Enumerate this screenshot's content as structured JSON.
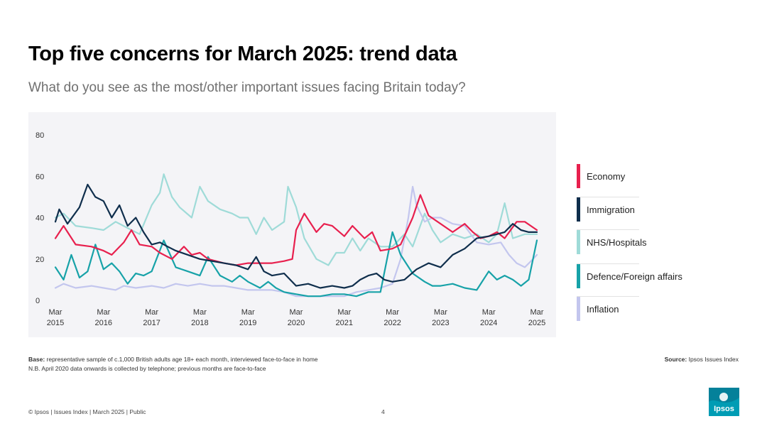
{
  "header": {
    "title": "Top five concerns for March 2025: trend data",
    "subtitle": "What do you see as the most/other important issues facing Britain today?"
  },
  "notes": {
    "base_label": "Base:",
    "base_text": " representative sample of c.1,000 British adults age 18+ each month, interviewed face-to-face in home",
    "nb_text": "N.B. April 2020 data onwards is collected by telephone; previous months are face-to-face",
    "source_label": "Source:",
    "source_text": " Ipsos Issues Index"
  },
  "footer": {
    "text": "© Ipsos | Issues Index | March 2025 | Public",
    "page_number": "4",
    "logo_text": "Ipsos"
  },
  "colors": {
    "economy": "#e8204e",
    "immigration": "#0f2e4c",
    "nhs": "#9fdbd8",
    "defence": "#17a2a8",
    "inflation": "#c3c6ee",
    "logo_bg": "#009cb4"
  },
  "chart_data": {
    "type": "line",
    "title": "Top five concerns for March 2025: trend data",
    "xlabel": "",
    "ylabel": "",
    "ylim": [
      0,
      80
    ],
    "yticks": [
      0,
      20,
      40,
      60,
      80
    ],
    "x_ticks": [
      {
        "month": "Mar",
        "year": "2015"
      },
      {
        "month": "Mar",
        "year": "2016"
      },
      {
        "month": "Mar",
        "year": "2017"
      },
      {
        "month": "Mar",
        "year": "2018"
      },
      {
        "month": "Mar",
        "year": "2019"
      },
      {
        "month": "Mar",
        "year": "2020"
      },
      {
        "month": "Mar",
        "year": "2021"
      },
      {
        "month": "Mar",
        "year": "2022"
      },
      {
        "month": "Mar",
        "year": "2023"
      },
      {
        "month": "Mar",
        "year": "2024"
      },
      {
        "month": "Mar",
        "year": "2025"
      }
    ],
    "x_start": 2015.0,
    "x_end": 2025.0,
    "legend_position": "right",
    "grid": false,
    "series": [
      {
        "name": "Economy",
        "key": "economy",
        "points": [
          [
            2015,
            30
          ],
          [
            2015.17,
            36
          ],
          [
            2015.42,
            27
          ],
          [
            2015.75,
            26
          ],
          [
            2016,
            24
          ],
          [
            2016.17,
            22
          ],
          [
            2016.42,
            28
          ],
          [
            2016.58,
            34
          ],
          [
            2016.75,
            27
          ],
          [
            2017,
            26
          ],
          [
            2017.17,
            23
          ],
          [
            2017.42,
            20
          ],
          [
            2017.67,
            26
          ],
          [
            2017.83,
            22
          ],
          [
            2018,
            23
          ],
          [
            2018.17,
            20
          ],
          [
            2018.5,
            18
          ],
          [
            2018.75,
            17
          ],
          [
            2019,
            18
          ],
          [
            2019.25,
            18
          ],
          [
            2019.5,
            18
          ],
          [
            2019.75,
            19
          ],
          [
            2019.92,
            20
          ],
          [
            2020,
            34
          ],
          [
            2020.17,
            42
          ],
          [
            2020.42,
            33
          ],
          [
            2020.58,
            37
          ],
          [
            2020.75,
            36
          ],
          [
            2021,
            31
          ],
          [
            2021.17,
            36
          ],
          [
            2021.42,
            30
          ],
          [
            2021.58,
            33
          ],
          [
            2021.75,
            24
          ],
          [
            2022,
            25
          ],
          [
            2022.17,
            27
          ],
          [
            2022.42,
            40
          ],
          [
            2022.58,
            51
          ],
          [
            2022.75,
            41
          ],
          [
            2023,
            37
          ],
          [
            2023.25,
            33
          ],
          [
            2023.5,
            37
          ],
          [
            2023.67,
            33
          ],
          [
            2023.83,
            30
          ],
          [
            2024,
            31
          ],
          [
            2024.17,
            33
          ],
          [
            2024.33,
            30
          ],
          [
            2024.58,
            38
          ],
          [
            2024.75,
            38
          ],
          [
            2025,
            34
          ]
        ]
      },
      {
        "name": "Immigration",
        "key": "immigration",
        "points": [
          [
            2015,
            38
          ],
          [
            2015.08,
            44
          ],
          [
            2015.25,
            37
          ],
          [
            2015.5,
            45
          ],
          [
            2015.67,
            56
          ],
          [
            2015.83,
            50
          ],
          [
            2016,
            48
          ],
          [
            2016.17,
            40
          ],
          [
            2016.33,
            46
          ],
          [
            2016.5,
            36
          ],
          [
            2016.67,
            40
          ],
          [
            2016.83,
            33
          ],
          [
            2017,
            27
          ],
          [
            2017.17,
            28
          ],
          [
            2017.33,
            26
          ],
          [
            2017.5,
            24
          ],
          [
            2017.75,
            22
          ],
          [
            2018,
            20
          ],
          [
            2018.25,
            19
          ],
          [
            2018.5,
            18
          ],
          [
            2018.75,
            17
          ],
          [
            2019,
            15
          ],
          [
            2019.17,
            21
          ],
          [
            2019.33,
            14
          ],
          [
            2019.5,
            12
          ],
          [
            2019.75,
            13
          ],
          [
            2020,
            7
          ],
          [
            2020.25,
            8
          ],
          [
            2020.5,
            6
          ],
          [
            2020.75,
            7
          ],
          [
            2021,
            6
          ],
          [
            2021.17,
            7
          ],
          [
            2021.33,
            10
          ],
          [
            2021.5,
            12
          ],
          [
            2021.67,
            13
          ],
          [
            2021.83,
            10
          ],
          [
            2022,
            9
          ],
          [
            2022.25,
            10
          ],
          [
            2022.5,
            15
          ],
          [
            2022.75,
            18
          ],
          [
            2023,
            16
          ],
          [
            2023.25,
            22
          ],
          [
            2023.5,
            25
          ],
          [
            2023.75,
            30
          ],
          [
            2024,
            31
          ],
          [
            2024.17,
            32
          ],
          [
            2024.33,
            33
          ],
          [
            2024.5,
            37
          ],
          [
            2024.67,
            34
          ],
          [
            2024.83,
            33
          ],
          [
            2025,
            33
          ]
        ]
      },
      {
        "name": "NHS/Hospitals",
        "key": "nhs",
        "points": [
          [
            2015,
            40
          ],
          [
            2015.17,
            42
          ],
          [
            2015.42,
            36
          ],
          [
            2015.75,
            35
          ],
          [
            2016,
            34
          ],
          [
            2016.25,
            38
          ],
          [
            2016.5,
            35
          ],
          [
            2016.75,
            32
          ],
          [
            2017,
            46
          ],
          [
            2017.17,
            52
          ],
          [
            2017.25,
            61
          ],
          [
            2017.42,
            50
          ],
          [
            2017.58,
            45
          ],
          [
            2017.83,
            40
          ],
          [
            2018,
            55
          ],
          [
            2018.17,
            48
          ],
          [
            2018.42,
            44
          ],
          [
            2018.67,
            42
          ],
          [
            2018.83,
            40
          ],
          [
            2019,
            40
          ],
          [
            2019.17,
            32
          ],
          [
            2019.33,
            40
          ],
          [
            2019.5,
            34
          ],
          [
            2019.75,
            38
          ],
          [
            2019.83,
            55
          ],
          [
            2020,
            45
          ],
          [
            2020.17,
            30
          ],
          [
            2020.42,
            20
          ],
          [
            2020.67,
            17
          ],
          [
            2020.83,
            23
          ],
          [
            2021,
            23
          ],
          [
            2021.17,
            30
          ],
          [
            2021.33,
            24
          ],
          [
            2021.5,
            30
          ],
          [
            2021.75,
            26
          ],
          [
            2022,
            26
          ],
          [
            2022.25,
            32
          ],
          [
            2022.42,
            26
          ],
          [
            2022.67,
            42
          ],
          [
            2022.83,
            34
          ],
          [
            2023,
            28
          ],
          [
            2023.25,
            32
          ],
          [
            2023.5,
            30
          ],
          [
            2023.75,
            32
          ],
          [
            2024,
            28
          ],
          [
            2024.17,
            32
          ],
          [
            2024.33,
            47
          ],
          [
            2024.5,
            30
          ],
          [
            2024.75,
            32
          ],
          [
            2025,
            32
          ]
        ]
      },
      {
        "name": "Defence/Foreign affairs",
        "key": "defence",
        "points": [
          [
            2015,
            16
          ],
          [
            2015.17,
            10
          ],
          [
            2015.33,
            22
          ],
          [
            2015.5,
            11
          ],
          [
            2015.67,
            14
          ],
          [
            2015.83,
            27
          ],
          [
            2016,
            15
          ],
          [
            2016.17,
            18
          ],
          [
            2016.33,
            14
          ],
          [
            2016.5,
            8
          ],
          [
            2016.67,
            13
          ],
          [
            2016.83,
            12
          ],
          [
            2017,
            14
          ],
          [
            2017.25,
            29
          ],
          [
            2017.5,
            16
          ],
          [
            2017.75,
            14
          ],
          [
            2018,
            12
          ],
          [
            2018.17,
            21
          ],
          [
            2018.42,
            12
          ],
          [
            2018.67,
            9
          ],
          [
            2018.83,
            12
          ],
          [
            2019,
            9
          ],
          [
            2019.25,
            6
          ],
          [
            2019.42,
            9
          ],
          [
            2019.58,
            6
          ],
          [
            2019.75,
            4
          ],
          [
            2020,
            3
          ],
          [
            2020.25,
            2
          ],
          [
            2020.5,
            2
          ],
          [
            2020.75,
            3
          ],
          [
            2021,
            3
          ],
          [
            2021.25,
            2
          ],
          [
            2021.5,
            4
          ],
          [
            2021.75,
            4
          ],
          [
            2022,
            33
          ],
          [
            2022.17,
            22
          ],
          [
            2022.42,
            13
          ],
          [
            2022.67,
            9
          ],
          [
            2022.83,
            7
          ],
          [
            2023,
            7
          ],
          [
            2023.25,
            8
          ],
          [
            2023.5,
            6
          ],
          [
            2023.75,
            5
          ],
          [
            2024,
            14
          ],
          [
            2024.17,
            10
          ],
          [
            2024.33,
            12
          ],
          [
            2024.5,
            10
          ],
          [
            2024.67,
            7
          ],
          [
            2024.83,
            10
          ],
          [
            2025,
            29
          ]
        ]
      },
      {
        "name": "Inflation",
        "key": "inflation",
        "points": [
          [
            2015,
            6
          ],
          [
            2015.17,
            8
          ],
          [
            2015.42,
            6
          ],
          [
            2015.75,
            7
          ],
          [
            2016,
            6
          ],
          [
            2016.25,
            5
          ],
          [
            2016.42,
            7
          ],
          [
            2016.67,
            6
          ],
          [
            2017,
            7
          ],
          [
            2017.25,
            6
          ],
          [
            2017.5,
            8
          ],
          [
            2017.75,
            7
          ],
          [
            2018,
            8
          ],
          [
            2018.25,
            7
          ],
          [
            2018.5,
            7
          ],
          [
            2018.75,
            6
          ],
          [
            2019,
            5
          ],
          [
            2019.25,
            5
          ],
          [
            2019.5,
            5
          ],
          [
            2019.75,
            4
          ],
          [
            2020,
            2
          ],
          [
            2020.25,
            2
          ],
          [
            2020.5,
            2
          ],
          [
            2020.75,
            2
          ],
          [
            2021,
            2
          ],
          [
            2021.25,
            4
          ],
          [
            2021.5,
            5
          ],
          [
            2021.75,
            6
          ],
          [
            2022,
            8
          ],
          [
            2022.17,
            20
          ],
          [
            2022.33,
            40
          ],
          [
            2022.42,
            55
          ],
          [
            2022.5,
            46
          ],
          [
            2022.67,
            38
          ],
          [
            2022.83,
            40
          ],
          [
            2023,
            40
          ],
          [
            2023.25,
            37
          ],
          [
            2023.5,
            36
          ],
          [
            2023.75,
            28
          ],
          [
            2024,
            27
          ],
          [
            2024.25,
            28
          ],
          [
            2024.42,
            22
          ],
          [
            2024.58,
            18
          ],
          [
            2024.75,
            16
          ],
          [
            2024.92,
            20
          ],
          [
            2025,
            22
          ]
        ]
      }
    ]
  }
}
